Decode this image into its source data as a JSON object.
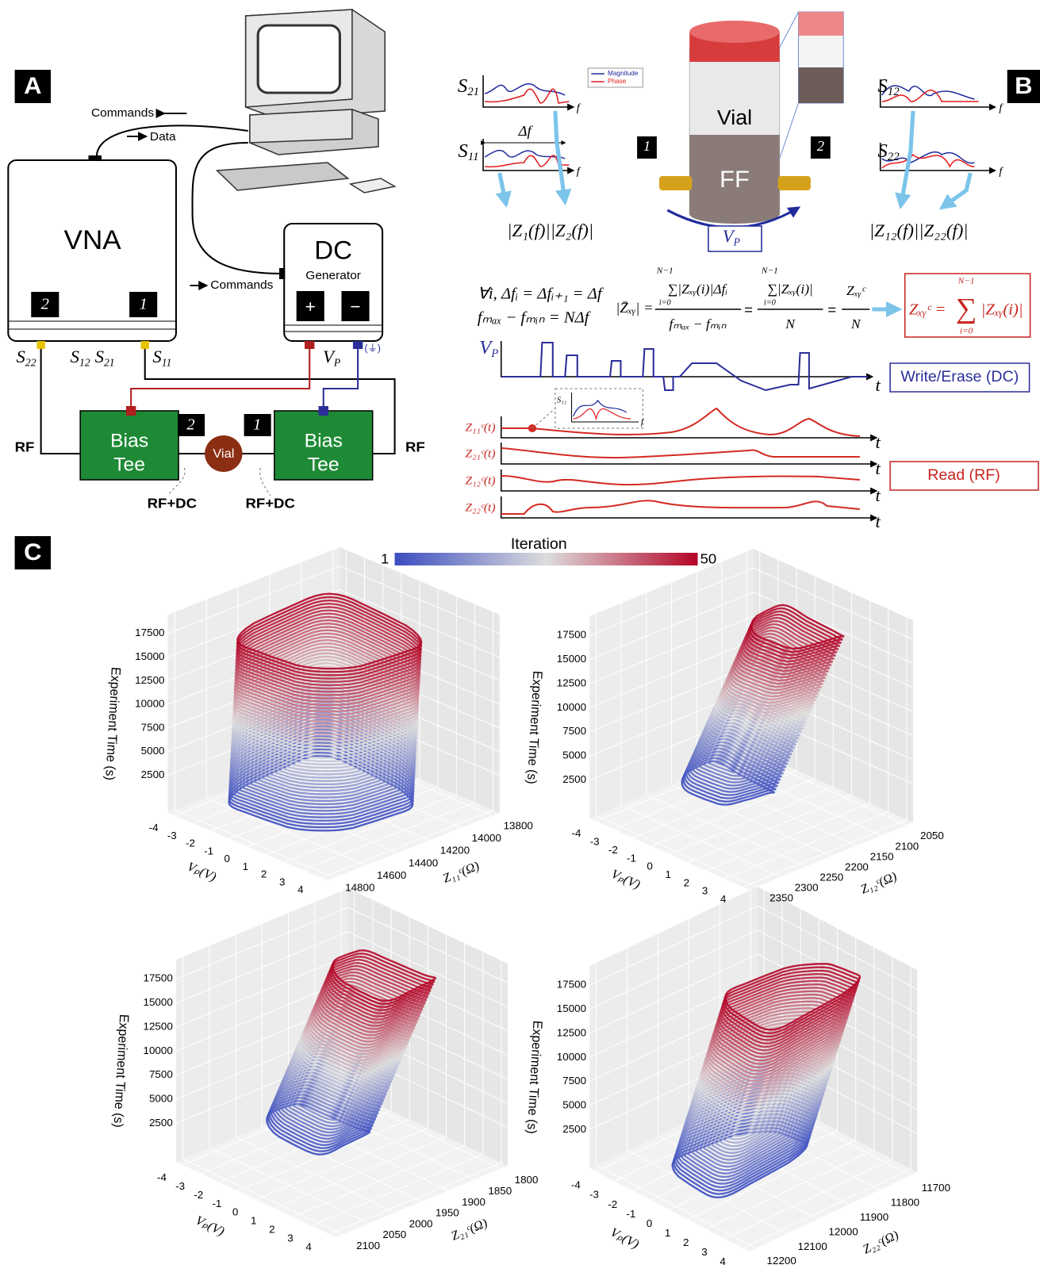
{
  "panel_labels": [
    "A",
    "B",
    "C"
  ],
  "panel_a": {
    "commands_top": "Commands",
    "data": "Data",
    "vna": "VNA",
    "vna_port_2": "2",
    "vna_port_1": "1",
    "dc": "DC",
    "generator": "Generator",
    "plus": "+",
    "minus": "−",
    "commands_dc": "Commands",
    "s22": {
      "base": "S",
      "sub": "22"
    },
    "s12": {
      "base": "S",
      "sub": "12"
    },
    "s21": {
      "base": "S",
      "sub": "21"
    },
    "s11": {
      "base": "S",
      "sub": "11"
    },
    "vp": {
      "base": "V",
      "sub": "P"
    },
    "ground": "(⏚)",
    "rf_left": "RF",
    "rf_right": "RF",
    "bias_tee_left": {
      "line1": "Bias",
      "line2": "Tee"
    },
    "bias_tee_right": {
      "line1": "Bias",
      "line2": "Tee"
    },
    "port_2": "2",
    "port_1": "1",
    "vial": "Vial",
    "rf_dc_left": "RF+DC",
    "rf_dc_right": "RF+DC"
  },
  "panel_b": {
    "s21": {
      "base": "S",
      "sub": "21"
    },
    "s11": {
      "base": "S",
      "sub": "11"
    },
    "delta_f": "Δf",
    "f_labels": [
      "f",
      "f",
      "f",
      "f"
    ],
    "legend": [
      "Magnitude",
      "Phase"
    ],
    "z_left": "|Z₁(f)||Z₂(f)|",
    "vial": "Vial",
    "ff": "FF",
    "port_1": "1",
    "port_2": "2",
    "vp": {
      "base": "V",
      "sub": "P"
    },
    "s12": {
      "base": "S",
      "sub": "12"
    },
    "s22": {
      "base": "S",
      "sub": "22"
    },
    "z_right": "|Z₁₂(f)||Z₂₂(f)|",
    "equation": {
      "line1": "∀i, Δfᵢ = Δfᵢ₊₁ = Δf",
      "line2": "fₘₐₓ − fₘᵢₙ = NΔf",
      "mean_lhs": "|Z̄ₓᵧ| =",
      "frac1_num": "∑|Zₓᵧ(i)|Δfᵢ",
      "frac1_den": "fₘₐₓ − fₘᵢₙ",
      "frac2_num": "∑|Zₓᵧ(i)|",
      "frac2_den": "N",
      "frac3_num": "Zₓᵧᶜ",
      "frac3_den": "N",
      "equals": [
        "=",
        "="
      ],
      "sum_upper": [
        "N−1",
        "N−1"
      ],
      "sum_lower": [
        "i=0",
        "i=0"
      ]
    },
    "boxed": {
      "lhs": "Zₓᵧᶜ =",
      "sum": "∑",
      "sum_upper": "N−1",
      "sum_lower": "i=0",
      "rhs": "|Zₓᵧ(i)|"
    },
    "timing_vp": {
      "base": "V",
      "sub": "P"
    },
    "t_labels": [
      "t",
      "t",
      "t",
      "t",
      "t"
    ],
    "write_erase": "Write/Erase (DC)",
    "read": "Read (RF)",
    "inset": {
      "s11": "S₁₁",
      "f": "f"
    },
    "z_traces": [
      "Z₁₁ᶜ(t)",
      "Z₂₁ᶜ(t)",
      "Z₁₂ᶜ(t)",
      "Z₂₂ᶜ(t)"
    ]
  },
  "panel_c": {
    "colorbar": {
      "title": "Iteration",
      "min": "1",
      "max": "50"
    },
    "plots": [
      {
        "z_label": "Experiment Time (s)",
        "z_ticks": [
          2500,
          5000,
          7500,
          10000,
          12500,
          15000,
          17500
        ],
        "x_label": "Vₚ(V)",
        "x_ticks": [
          -4,
          -3,
          -2,
          -1,
          0,
          1,
          2,
          3,
          4
        ],
        "y_label": "Z₁₁ᶜ(Ω)",
        "y_ticks": [
          13800,
          14000,
          14200,
          14400,
          14600,
          14800
        ]
      },
      {
        "z_label": "Experiment Time (s)",
        "z_ticks": [
          2500,
          5000,
          7500,
          10000,
          12500,
          15000,
          17500
        ],
        "x_label": "Vₚ(V)",
        "x_ticks": [
          -4,
          -3,
          -2,
          -1,
          0,
          1,
          2,
          3,
          4
        ],
        "y_label": "Z₁₂ᶜ(Ω)",
        "y_ticks": [
          2050,
          2100,
          2150,
          2200,
          2250,
          2300,
          2350
        ]
      },
      {
        "z_label": "Experiment Time (s)",
        "z_ticks": [
          2500,
          5000,
          7500,
          10000,
          12500,
          15000,
          17500
        ],
        "x_label": "Vₚ(V)",
        "x_ticks": [
          -4,
          -3,
          -2,
          -1,
          0,
          1,
          2,
          3,
          4
        ],
        "y_label": "Z₂₁ᶜ(Ω)",
        "y_ticks": [
          1800,
          1850,
          1900,
          1950,
          2000,
          2050,
          2100
        ]
      },
      {
        "z_label": "Experiment Time (s)",
        "z_ticks": [
          2500,
          5000,
          7500,
          10000,
          12500,
          15000,
          17500
        ],
        "x_label": "Vₚ(V)",
        "x_ticks": [
          -4,
          -3,
          -2,
          -1,
          0,
          1,
          2,
          3,
          4
        ],
        "y_label": "Z₂₂ᶜ(Ω)",
        "y_ticks": [
          11700,
          11800,
          11900,
          12000,
          12100,
          12200
        ]
      }
    ]
  }
}
